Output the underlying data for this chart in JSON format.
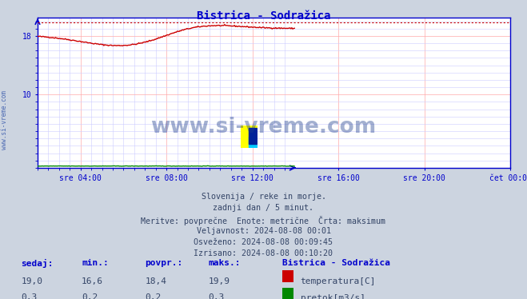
{
  "title": "Bistrica - Sodražica",
  "title_color": "#0000cc",
  "bg_color": "#ccd4e0",
  "plot_bg_color": "#ffffff",
  "grid_color_major": "#ffaaaa",
  "grid_color_minor": "#ccccff",
  "axis_color": "#0000cc",
  "tick_label_color": "#0000cc",
  "x_tick_labels": [
    "sre 04:00",
    "sre 08:00",
    "sre 12:00",
    "sre 16:00",
    "sre 20:00",
    "čet 00:00"
  ],
  "ylim": [
    0,
    20.5
  ],
  "temp_max_line": 19.9,
  "temp_line_color": "#cc0000",
  "flow_line_color": "#008800",
  "info_lines": [
    "Slovenija / reke in morje.",
    "zadnji dan / 5 minut.",
    "Meritve: povprečne  Enote: metrične  Črta: maksimum",
    "Veljavnost: 2024-08-08 00:01",
    "Osveženo: 2024-08-08 00:09:45",
    "Izrisano: 2024-08-08 00:10:20"
  ],
  "legend_station": "Bistrica - Sodražica",
  "legend_entries": [
    {
      "label": "temperatura[C]",
      "color": "#cc0000"
    },
    {
      "label": "pretok[m3/s]",
      "color": "#008800"
    }
  ],
  "bottom_labels": [
    "sedaj:",
    "min.:",
    "povpr.:",
    "maks.:"
  ],
  "bottom_temp": [
    "19,0",
    "16,6",
    "18,4",
    "19,9"
  ],
  "bottom_flow": [
    "0,3",
    "0,2",
    "0,2",
    "0,3"
  ],
  "watermark_text": "www.si-vreme.com",
  "sidebar_text": "www.si-vreme.com"
}
